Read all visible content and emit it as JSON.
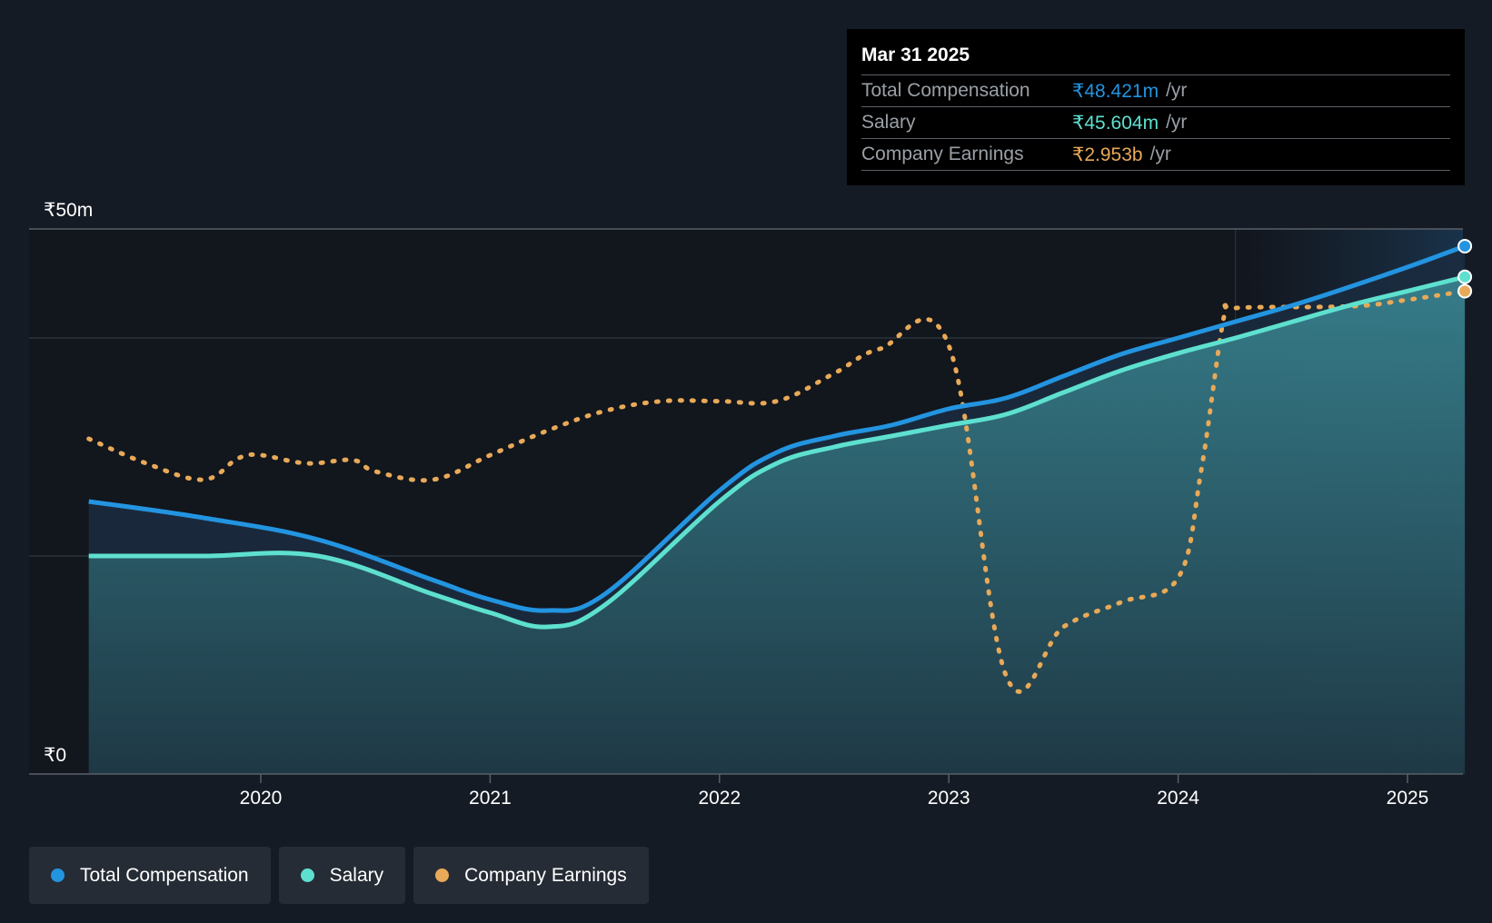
{
  "colors": {
    "background": "#151b24",
    "total_compensation": "#2394e0",
    "salary": "#5ee0cf",
    "company_earnings": "#e8a958",
    "grid": "#3a414b"
  },
  "tooltip": {
    "date": "Mar 31 2025",
    "rows": [
      {
        "label": "Total Compensation",
        "value": "₹48.421m",
        "unit": "/yr"
      },
      {
        "label": "Salary",
        "value": "₹45.604m",
        "unit": "/yr"
      },
      {
        "label": "Company Earnings",
        "value": "₹2.953b",
        "unit": "/yr"
      }
    ]
  },
  "legend": [
    {
      "label": "Total Compensation",
      "color": "#2394e0"
    },
    {
      "label": "Salary",
      "color": "#5ee0cf"
    },
    {
      "label": "Company Earnings",
      "color": "#e8a958"
    }
  ],
  "chart_data": {
    "type": "line",
    "title": "",
    "xlabel": "",
    "ylabel": "",
    "x_ticks": [
      2020,
      2021,
      2022,
      2023,
      2024,
      2025
    ],
    "y_ticks": [
      {
        "value": 0,
        "label": "₹0"
      },
      {
        "value": 50,
        "label": "₹50m"
      }
    ],
    "ylim": [
      0,
      50
    ],
    "xlim": [
      2019.25,
      2025.25
    ],
    "grid": true,
    "legend_position": "bottom-left",
    "series": [
      {
        "name": "Total Compensation",
        "unit": "₹m",
        "x": [
          2019.25,
          2019.75,
          2020.25,
          2020.75,
          2021.0,
          2021.25,
          2021.5,
          2022.0,
          2022.25,
          2022.5,
          2022.75,
          2023.0,
          2023.25,
          2023.5,
          2023.75,
          2024.0,
          2024.25,
          2024.5,
          2024.75,
          2025.0,
          2025.25
        ],
        "y": [
          25.0,
          23.5,
          21.5,
          17.8,
          16.0,
          15.0,
          16.5,
          26.0,
          29.5,
          31.0,
          32.0,
          33.5,
          34.5,
          36.5,
          38.5,
          40.0,
          41.5,
          43.0,
          44.7,
          46.5,
          48.421
        ]
      },
      {
        "name": "Salary",
        "unit": "₹m",
        "x": [
          2019.25,
          2019.75,
          2020.25,
          2020.75,
          2021.0,
          2021.25,
          2021.5,
          2022.0,
          2022.25,
          2022.5,
          2022.75,
          2023.0,
          2023.25,
          2023.5,
          2023.75,
          2024.0,
          2024.25,
          2024.5,
          2024.75,
          2025.0,
          2025.25
        ],
        "y": [
          20.0,
          20.0,
          20.0,
          16.5,
          14.8,
          13.5,
          15.5,
          25.0,
          28.5,
          30.0,
          31.0,
          32.0,
          33.0,
          35.0,
          37.0,
          38.6,
          40.0,
          41.5,
          43.0,
          44.3,
          45.604
        ]
      },
      {
        "name": "Company Earnings",
        "unit": "₹b",
        "style": "dotted",
        "x": [
          2019.25,
          2019.5,
          2019.75,
          2019.9,
          2020.0,
          2020.2,
          2020.4,
          2020.5,
          2020.75,
          2021.0,
          2021.25,
          2021.5,
          2021.75,
          2022.0,
          2022.25,
          2022.5,
          2022.7,
          2023.0,
          2023.25,
          2023.5,
          2023.75,
          2024.0,
          2024.1,
          2024.2,
          2024.25,
          2024.75,
          2025.0,
          2025.25
        ],
        "y": [
          2.05,
          1.9,
          1.8,
          1.93,
          1.95,
          1.9,
          1.92,
          1.85,
          1.8,
          1.95,
          2.1,
          2.22,
          2.28,
          2.28,
          2.28,
          2.45,
          2.6,
          2.62,
          0.6,
          0.9,
          1.05,
          1.2,
          1.85,
          2.8,
          2.85,
          2.86,
          2.9,
          2.953
        ]
      }
    ],
    "highlight_from_x": 2024.25
  }
}
